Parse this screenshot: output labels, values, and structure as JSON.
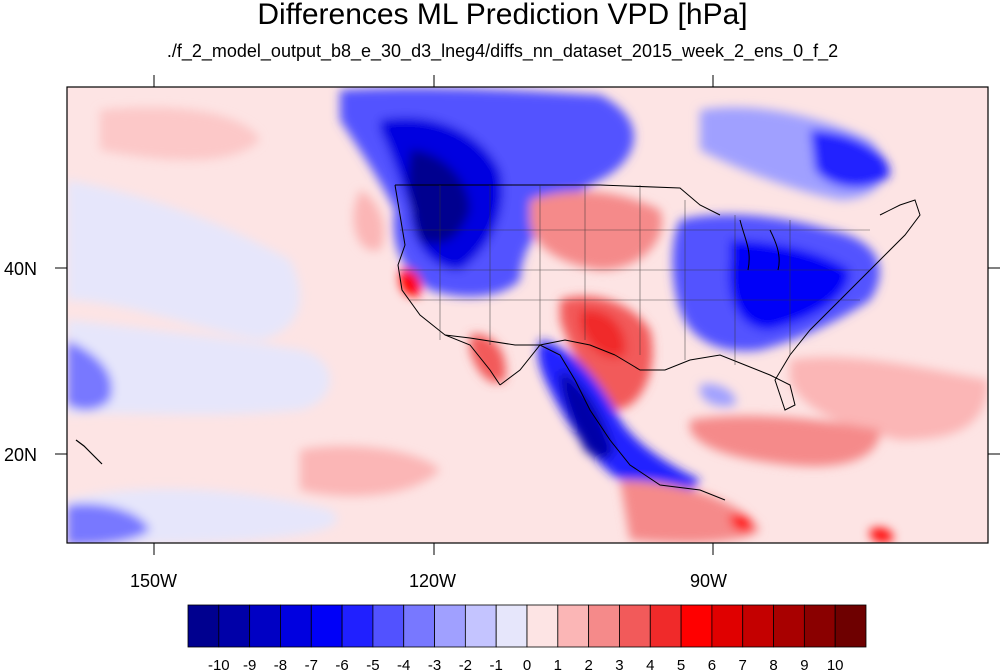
{
  "title": "Differences ML Prediction VPD [hPa]",
  "subtitle": "./f_2_model_output_b8_e_30_d3_lneg4/diffs_nn_dataset_2015_week_2_ens_0_f_2",
  "map": {
    "lon_range": [
      -160,
      -64
    ],
    "lat_range": [
      10,
      59
    ],
    "x_tick_labels": [
      "150W",
      "120W",
      "90W"
    ],
    "y_tick_labels": [
      "40N",
      "20N"
    ],
    "regions": {
      "background": "#fde4e4",
      "pacific_light_band": "#e6e6fb"
    }
  },
  "colorbar": {
    "labels": [
      "-10",
      "-9",
      "-8",
      "-7",
      "-6",
      "-5",
      "-4",
      "-3",
      "-2",
      "-1",
      "0",
      "1",
      "2",
      "3",
      "4",
      "5",
      "6",
      "7",
      "8",
      "9",
      "10"
    ],
    "colors": [
      "#00008f",
      "#0000a8",
      "#0000c4",
      "#0000e0",
      "#0000f8",
      "#2020ff",
      "#5252ff",
      "#7878ff",
      "#a0a0ff",
      "#c4c4ff",
      "#e6e6fb",
      "#fde4e4",
      "#fbb6b6",
      "#f58a8a",
      "#f25a5a",
      "#f02a2a",
      "#ff0000",
      "#e00000",
      "#c40000",
      "#a80000",
      "#8a0000",
      "#6e0000"
    ]
  }
}
